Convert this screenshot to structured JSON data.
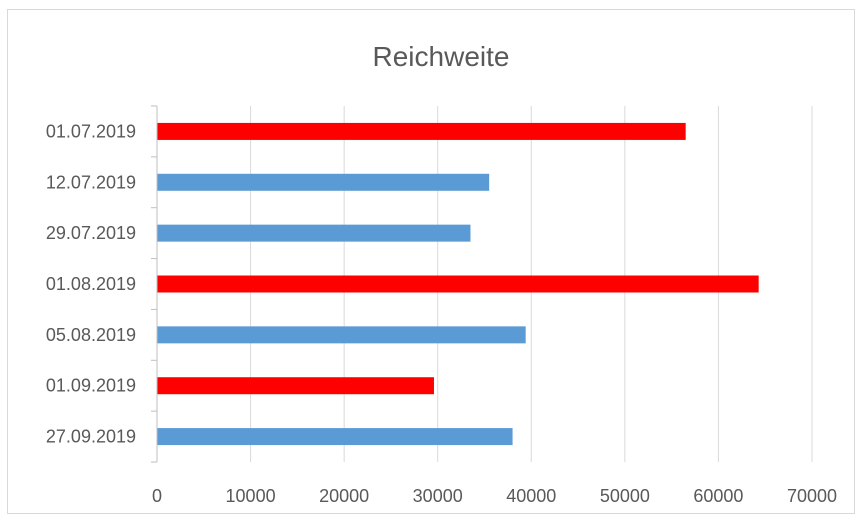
{
  "chart_data": {
    "type": "bar",
    "orientation": "horizontal",
    "title": "Reichweite",
    "xlabel": "",
    "ylabel": "",
    "categories": [
      "01.07.2019",
      "12.07.2019",
      "29.07.2019",
      "01.08.2019",
      "05.08.2019",
      "01.09.2019",
      "27.09.2019"
    ],
    "values": [
      56500,
      35500,
      33500,
      64300,
      39400,
      29600,
      38000
    ],
    "colors": [
      "#ff0000",
      "#5b9bd5",
      "#5b9bd5",
      "#ff0000",
      "#5b9bd5",
      "#ff0000",
      "#5b9bd5"
    ],
    "xlim": [
      0,
      70000
    ],
    "xticks": [
      0,
      10000,
      20000,
      30000,
      40000,
      50000,
      60000,
      70000
    ],
    "grid": true,
    "legend": "none"
  }
}
